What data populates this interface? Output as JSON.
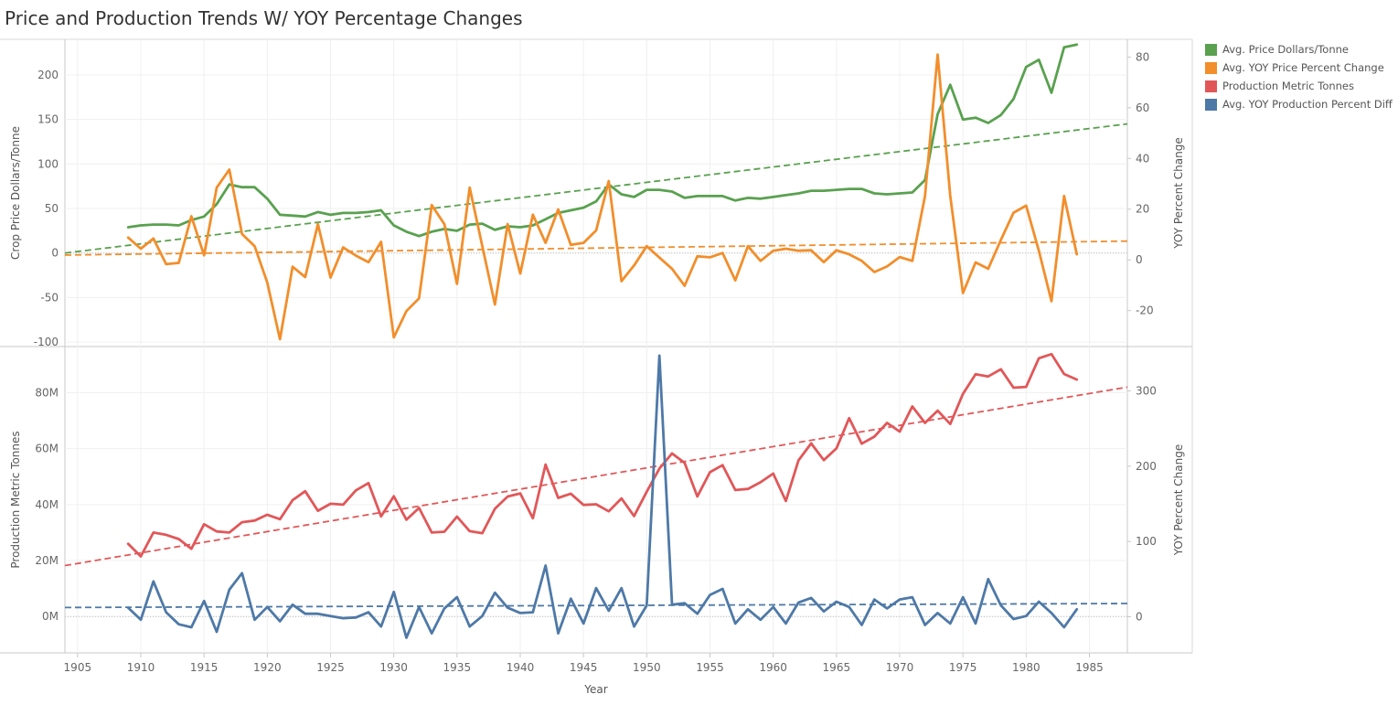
{
  "title": "Price and Production Trends W/ YOY Percentage Changes",
  "legend": [
    {
      "label": "Avg. Price Dollars/Tonne",
      "color": "#59a14f"
    },
    {
      "label": "Avg. YOY Price Percent Change",
      "color": "#f28e2b"
    },
    {
      "label": "Production Metric Tonnes",
      "color": "#e15759"
    },
    {
      "label": "Avg. YOY Production Percent Diff",
      "color": "#4e79a7"
    }
  ],
  "chart_data": [
    {
      "type": "line",
      "panel": "top",
      "xlabel": "Year",
      "ylabel": "Crop Price Dollars/Tonne",
      "ylabel_right": "YOY Percent Change",
      "xlim": [
        1904,
        1988
      ],
      "ylim": [
        -105,
        240
      ],
      "ylim_right": [
        -34.2,
        87
      ],
      "yticks": [
        200,
        150,
        100,
        50,
        0,
        -50,
        -100
      ],
      "yticks_right": [
        80,
        60,
        40,
        20,
        0,
        -20
      ],
      "grid": true,
      "series": [
        {
          "name": "Avg. Price Dollars/Tonne",
          "color": "#59a14f",
          "axis": "left",
          "x": [
            1909,
            1910,
            1911,
            1912,
            1913,
            1914,
            1915,
            1916,
            1917,
            1918,
            1919,
            1920,
            1921,
            1922,
            1923,
            1924,
            1925,
            1926,
            1927,
            1928,
            1929,
            1930,
            1931,
            1932,
            1933,
            1934,
            1935,
            1936,
            1937,
            1938,
            1939,
            1940,
            1941,
            1942,
            1943,
            1944,
            1945,
            1946,
            1947,
            1948,
            1949,
            1950,
            1951,
            1952,
            1953,
            1954,
            1955,
            1956,
            1957,
            1958,
            1959,
            1960,
            1961,
            1962,
            1963,
            1964,
            1965,
            1966,
            1967,
            1968,
            1969,
            1970,
            1971,
            1972,
            1973,
            1974,
            1975,
            1976,
            1977,
            1978,
            1979,
            1980,
            1981,
            1982,
            1983,
            1984
          ],
          "values": [
            29,
            31,
            32,
            32,
            31,
            37,
            41,
            55,
            77,
            74,
            74,
            61,
            43,
            42,
            41,
            46,
            43,
            45,
            45,
            46,
            48,
            31,
            24,
            19,
            24,
            27,
            25,
            32,
            33,
            26,
            30,
            29,
            31,
            38,
            45,
            48,
            51,
            58,
            77,
            66,
            63,
            71,
            71,
            69,
            62,
            64,
            64,
            64,
            59,
            62,
            61,
            63,
            65,
            67,
            70,
            70,
            71,
            72,
            72,
            67,
            66,
            67,
            68,
            82,
            156,
            189,
            150,
            152,
            146,
            155,
            173,
            209,
            217,
            180,
            231,
            234
          ]
        },
        {
          "name": "Avg. YOY Price Percent Change",
          "color": "#f28e2b",
          "axis": "right",
          "x": [
            1909,
            1910,
            1911,
            1912,
            1913,
            1914,
            1915,
            1916,
            1917,
            1918,
            1919,
            1920,
            1921,
            1922,
            1923,
            1924,
            1925,
            1926,
            1927,
            1928,
            1929,
            1930,
            1931,
            1932,
            1933,
            1934,
            1935,
            1936,
            1937,
            1938,
            1939,
            1940,
            1941,
            1942,
            1943,
            1944,
            1945,
            1946,
            1947,
            1948,
            1949,
            1950,
            1951,
            1952,
            1953,
            1954,
            1955,
            1956,
            1957,
            1958,
            1959,
            1960,
            1961,
            1962,
            1963,
            1964,
            1965,
            1966,
            1967,
            1968,
            1969,
            1970,
            1971,
            1972,
            1973,
            1974,
            1975,
            1976,
            1977,
            1978,
            1979,
            1980,
            1981,
            1982,
            1983,
            1984
          ],
          "values": [
            8.8,
            4.4,
            8.4,
            -1.7,
            -1.2,
            17.2,
            1.8,
            28.5,
            35.6,
            10.2,
            5.4,
            -8.9,
            -31.3,
            -2.7,
            -6.8,
            14.1,
            -7,
            4.9,
            1.7,
            -0.9,
            7.1,
            -30.6,
            -20.2,
            -15.2,
            21.6,
            14.1,
            -9.5,
            28.5,
            5.4,
            -17.6,
            14.1,
            -5.4,
            17.8,
            6.7,
            19.9,
            5.9,
            6.7,
            11.6,
            31.1,
            -8.4,
            -2.2,
            5.4,
            0.9,
            -3.5,
            -10.2,
            1.4,
            1,
            2.7,
            -8.1,
            5.4,
            -0.4,
            3.6,
            4.4,
            3.6,
            3.8,
            -0.9,
            3.8,
            2.2,
            -0.4,
            -4.8,
            -2.6,
            1.1,
            -0.4,
            25.2,
            81,
            25.2,
            -13.1,
            -1,
            -3.5,
            7.9,
            18.6,
            21.4,
            3.6,
            -16.3,
            25.2,
            2.2
          ]
        }
      ],
      "trend_lines": [
        {
          "series": "Avg. Price Dollars/Tonne",
          "color": "#59a14f",
          "x": [
            1904,
            1988
          ],
          "y": [
            0,
            145
          ]
        },
        {
          "series": "Avg. YOY Price Percent Change",
          "color": "#f28e2b",
          "x": [
            1904,
            1988
          ],
          "y": [
            1.9,
            7.4
          ]
        }
      ]
    },
    {
      "type": "line",
      "panel": "bottom",
      "xlabel": "Year",
      "ylabel": "Production Metric Tonnes",
      "ylabel_right": "YOY Percent Change",
      "xlim": [
        1904,
        1988
      ],
      "ylim": [
        -13000000,
        96500000
      ],
      "ylim_right": [
        -48,
        359
      ],
      "yticks": [
        0,
        20000000,
        40000000,
        60000000,
        80000000
      ],
      "ytick_labels": [
        "0M",
        "20M",
        "40M",
        "60M",
        "80M"
      ],
      "yticks_right": [
        0,
        100,
        200,
        300
      ],
      "xticks": [
        1905,
        1910,
        1915,
        1920,
        1925,
        1930,
        1935,
        1940,
        1945,
        1950,
        1955,
        1960,
        1965,
        1970,
        1975,
        1980,
        1985
      ],
      "grid": true,
      "series": [
        {
          "name": "Production Metric Tonnes",
          "color": "#e15759",
          "axis": "left",
          "x": [
            1909,
            1910,
            1911,
            1912,
            1913,
            1914,
            1915,
            1916,
            1917,
            1918,
            1919,
            1920,
            1921,
            1922,
            1923,
            1924,
            1925,
            1926,
            1927,
            1928,
            1929,
            1930,
            1931,
            1932,
            1933,
            1934,
            1935,
            1936,
            1937,
            1938,
            1939,
            1940,
            1941,
            1942,
            1943,
            1944,
            1945,
            1946,
            1947,
            1948,
            1949,
            1950,
            1951,
            1952,
            1953,
            1954,
            1955,
            1956,
            1957,
            1958,
            1959,
            1960,
            1961,
            1962,
            1963,
            1964,
            1965,
            1966,
            1967,
            1968,
            1969,
            1970,
            1971,
            1972,
            1973,
            1974,
            1975,
            1976,
            1977,
            1978,
            1979,
            1980,
            1981,
            1982,
            1983,
            1984
          ],
          "values": [
            26000000,
            21500000,
            30000000,
            29200000,
            27700000,
            24200000,
            33000000,
            30400000,
            30000000,
            33700000,
            34300000,
            36400000,
            34800000,
            41600000,
            44800000,
            37800000,
            40300000,
            40000000,
            45100000,
            47700000,
            35800000,
            43000000,
            34600000,
            38800000,
            30000000,
            30300000,
            35700000,
            30500000,
            29800000,
            38500000,
            42900000,
            44000000,
            35100000,
            54300000,
            42400000,
            43900000,
            39900000,
            40100000,
            37600000,
            42200000,
            35900000,
            44600000,
            52900000,
            58300000,
            54900000,
            42900000,
            51600000,
            54100000,
            45200000,
            45600000,
            48000000,
            51100000,
            41300000,
            55800000,
            61900000,
            55900000,
            60100000,
            70900000,
            61800000,
            64300000,
            69200000,
            66100000,
            75100000,
            69200000,
            73600000,
            68800000,
            79600000,
            86600000,
            85800000,
            88400000,
            81800000,
            82100000,
            92300000,
            93800000,
            86700000,
            84700000
          ]
        },
        {
          "name": "Avg. YOY Production Percent Diff",
          "color": "#4e79a7",
          "axis": "right",
          "x": [
            1909,
            1910,
            1911,
            1912,
            1913,
            1914,
            1915,
            1916,
            1917,
            1918,
            1919,
            1920,
            1921,
            1922,
            1923,
            1924,
            1925,
            1926,
            1927,
            1928,
            1929,
            1930,
            1931,
            1932,
            1933,
            1934,
            1935,
            1936,
            1937,
            1938,
            1939,
            1940,
            1941,
            1942,
            1943,
            1944,
            1945,
            1946,
            1947,
            1948,
            1949,
            1950,
            1951,
            1952,
            1953,
            1954,
            1955,
            1956,
            1957,
            1958,
            1959,
            1960,
            1961,
            1962,
            1963,
            1964,
            1965,
            1966,
            1967,
            1968,
            1969,
            1970,
            1971,
            1972,
            1973,
            1974,
            1975,
            1976,
            1977,
            1978,
            1979,
            1980,
            1981,
            1982,
            1983,
            1984
          ],
          "values": [
            12,
            -4,
            47,
            6,
            -10,
            -14,
            21,
            -20,
            36,
            58,
            -4,
            13,
            -6,
            16,
            4,
            4,
            1,
            -2,
            -1,
            6,
            -13,
            33,
            -28,
            13,
            -22,
            11,
            26,
            -13,
            1,
            32,
            12,
            5,
            6,
            68,
            -22,
            24,
            -9,
            38,
            8,
            38,
            -13,
            15,
            347,
            16,
            18,
            4,
            29,
            37,
            -9,
            10,
            -4,
            13,
            -9,
            19,
            25,
            7,
            20,
            13,
            -11,
            23,
            11,
            23,
            26,
            -11,
            5,
            -9,
            26,
            -9,
            50,
            15,
            -3,
            1,
            20,
            5,
            -14,
            10
          ]
        }
      ],
      "trend_lines": [
        {
          "series": "Production Metric Tonnes",
          "color": "#e15759",
          "x": [
            1904,
            1988
          ],
          "y": [
            18200000,
            82000000
          ]
        },
        {
          "series": "Avg. YOY Production Percent Diff",
          "color": "#4e79a7",
          "x": [
            1904,
            1988
          ],
          "y": [
            12.3,
            17.6
          ]
        }
      ]
    }
  ]
}
